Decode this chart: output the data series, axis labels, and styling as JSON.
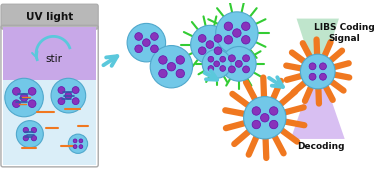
{
  "bg_color": "#ffffff",
  "box_gray_color": "#b8b8b8",
  "box_purple_color": "#c8a8e8",
  "box_blue_color": "#daeef8",
  "uv_label": "UV light",
  "stir_label": "stir",
  "arrow_color": "#5bc8dc",
  "bead_color": "#72c8e8",
  "bead_border": "#50a8cc",
  "dot_color": "#8833bb",
  "dot_border": "#6611aa",
  "spike_green": "#33cc33",
  "spike_orange": "#f07820",
  "rod_blue": "#3355aa",
  "rod_orange": "#f07820",
  "libs_label": "LIBS Coding\nSignal",
  "decoding_label": "Decoding"
}
